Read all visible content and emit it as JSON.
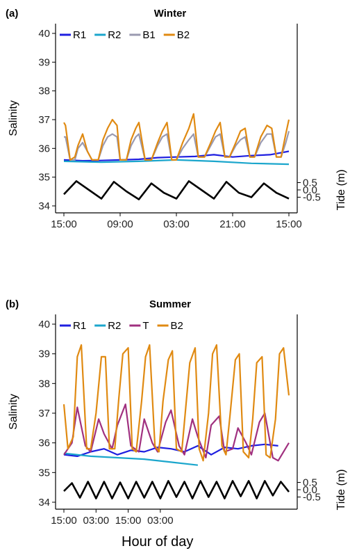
{
  "figure": {
    "xlabel": "Hour of day"
  },
  "chart_data": [
    {
      "type": "line",
      "panel_label": "(a)",
      "title": "Winter",
      "ylabel": "Salinity",
      "y2label": "Tide (m)",
      "ylim": [
        34,
        40
      ],
      "yticks": [
        "34",
        "35",
        "36",
        "37",
        "38",
        "39",
        "40"
      ],
      "y2ticks": [
        "0.5",
        "0.0",
        "-0.5"
      ],
      "xlim": [
        0,
        72
      ],
      "xticks": [
        {
          "t": 0,
          "label": "15:00"
        },
        {
          "t": 18,
          "label": "09:00"
        },
        {
          "t": 36,
          "label": "03:00"
        },
        {
          "t": 54,
          "label": "21:00"
        },
        {
          "t": 72,
          "label": "15:00"
        }
      ],
      "legend_placement": "top-left",
      "series": [
        {
          "name": "R1",
          "color": "#1f1fe0",
          "x": [
            0,
            6,
            12,
            18,
            24,
            30,
            36,
            42,
            48,
            54,
            60,
            66,
            72
          ],
          "values": [
            35.6,
            35.57,
            35.58,
            35.6,
            35.62,
            35.68,
            35.7,
            35.72,
            35.78,
            35.7,
            35.75,
            35.78,
            35.9
          ]
        },
        {
          "name": "R2",
          "color": "#1ba6cc",
          "x": [
            0,
            12,
            24,
            36,
            48,
            60,
            72
          ],
          "values": [
            35.55,
            35.52,
            35.55,
            35.6,
            35.55,
            35.48,
            35.45
          ]
        },
        {
          "name": "B1",
          "color": "#9a9ab0",
          "x": [
            0,
            0.5,
            2,
            3.5,
            4.5,
            6,
            7.5,
            9,
            11,
            12.5,
            14,
            15.5,
            17,
            18,
            20,
            21.5,
            23,
            24,
            26,
            28,
            30,
            31.5,
            33,
            34.5,
            36,
            38,
            40,
            41.5,
            43,
            45,
            47,
            48.5,
            50,
            51.5,
            53,
            55,
            56.5,
            58,
            59.5,
            61,
            63,
            65,
            66.5,
            68,
            69.5,
            71,
            72
          ],
          "values": [
            36.4,
            36.4,
            35.6,
            35.6,
            36.0,
            36.2,
            35.9,
            35.6,
            35.6,
            36.1,
            36.4,
            36.5,
            36.4,
            35.6,
            35.6,
            36.1,
            36.4,
            36.5,
            35.6,
            35.6,
            36.1,
            36.4,
            36.5,
            35.6,
            35.6,
            36.0,
            36.3,
            36.5,
            35.7,
            35.7,
            36.1,
            36.4,
            36.5,
            35.7,
            35.7,
            36.1,
            36.3,
            36.4,
            35.7,
            35.7,
            36.2,
            36.5,
            36.5,
            35.7,
            35.7,
            36.2,
            36.6
          ]
        },
        {
          "name": "B2",
          "color": "#e08a12",
          "x": [
            0,
            0.5,
            2,
            3.5,
            4.5,
            6,
            7.5,
            9,
            11,
            12.5,
            14,
            15.5,
            17,
            18,
            20,
            21.5,
            23,
            24,
            26,
            28,
            30,
            31.5,
            33,
            34.5,
            36,
            38,
            40,
            41.5,
            43,
            45,
            47,
            48.5,
            50,
            51.5,
            53,
            55,
            56.5,
            58,
            59.5,
            61,
            63,
            65,
            66.5,
            68,
            69.5,
            71,
            72
          ],
          "values": [
            36.9,
            36.8,
            35.6,
            35.7,
            36.1,
            36.5,
            35.9,
            35.6,
            35.6,
            36.3,
            36.7,
            37.0,
            36.8,
            35.6,
            35.6,
            36.3,
            36.7,
            36.9,
            35.6,
            35.6,
            36.2,
            36.6,
            36.9,
            35.6,
            35.6,
            36.2,
            36.7,
            37.2,
            35.7,
            35.7,
            36.2,
            36.6,
            36.9,
            35.7,
            35.7,
            36.2,
            36.6,
            36.7,
            35.7,
            35.7,
            36.4,
            36.8,
            36.7,
            35.7,
            35.7,
            36.5,
            37.0
          ]
        },
        {
          "name": "Tide",
          "color": "#000000",
          "axis": "tide",
          "x": [
            0,
            4,
            8,
            12,
            16,
            20,
            24,
            28,
            32,
            36,
            40,
            44,
            48,
            52,
            56,
            60,
            64,
            68,
            72
          ],
          "values": [
            -0.3,
            0.6,
            0.0,
            -0.6,
            0.55,
            -0.1,
            -0.65,
            0.45,
            -0.2,
            -0.6,
            0.6,
            0.0,
            -0.6,
            0.55,
            -0.2,
            -0.5,
            0.45,
            -0.2,
            -0.6
          ]
        }
      ]
    },
    {
      "type": "line",
      "panel_label": "(b)",
      "title": "Summer",
      "ylabel": "Salinity",
      "y2label": "Tide (m)",
      "ylim": [
        34,
        40
      ],
      "yticks": [
        "34",
        "35",
        "36",
        "37",
        "38",
        "39",
        "40"
      ],
      "y2ticks": [
        "0.5",
        "0.0",
        "-0.5"
      ],
      "xlim": [
        0,
        84
      ],
      "xticks": [
        {
          "t": 0,
          "label": "15:00"
        },
        {
          "t": 12,
          "label": "03:00"
        },
        {
          "t": 24,
          "label": "15:00"
        },
        {
          "t": 36,
          "label": "03:00"
        }
      ],
      "legend_placement": "top-left",
      "series": [
        {
          "name": "R1",
          "color": "#1f1fe0",
          "x": [
            0,
            5,
            10,
            15,
            20,
            25,
            30,
            35,
            40,
            45,
            50,
            55,
            60,
            65,
            70,
            75,
            80
          ],
          "values": [
            35.6,
            35.55,
            35.7,
            35.8,
            35.6,
            35.75,
            35.7,
            35.85,
            35.8,
            35.7,
            35.9,
            35.6,
            35.85,
            35.8,
            35.9,
            35.95,
            35.9
          ]
        },
        {
          "name": "R2",
          "color": "#1ba6cc",
          "x": [
            0,
            10,
            20,
            30,
            40,
            50
          ],
          "values": [
            35.65,
            35.55,
            35.5,
            35.45,
            35.35,
            35.25
          ]
        },
        {
          "name": "T",
          "color": "#a0307f",
          "x": [
            0,
            3,
            5,
            8,
            10,
            13,
            15,
            18,
            20,
            23,
            25,
            28,
            30,
            33,
            35,
            38,
            40,
            43,
            45,
            48,
            50,
            53,
            55,
            58,
            60,
            63,
            65,
            68,
            70,
            73,
            75,
            78,
            80,
            84
          ],
          "values": [
            35.6,
            36.0,
            37.2,
            35.9,
            35.7,
            36.8,
            36.3,
            35.8,
            36.6,
            37.3,
            35.9,
            35.7,
            36.8,
            36.0,
            35.7,
            36.7,
            37.1,
            35.9,
            35.6,
            36.8,
            36.2,
            35.5,
            36.6,
            36.9,
            35.7,
            35.8,
            36.5,
            36.0,
            35.6,
            36.7,
            37.0,
            35.5,
            35.4,
            36.0
          ]
        },
        {
          "name": "B2",
          "color": "#e08a12",
          "x": [
            0,
            1.5,
            3.5,
            5,
            6.5,
            8.5,
            10,
            12,
            14,
            15.5,
            17,
            19,
            20.5,
            22,
            24,
            25.5,
            27,
            29,
            30.5,
            32,
            34,
            35.5,
            37,
            39,
            40.5,
            42,
            44,
            45.5,
            47,
            49,
            50.5,
            52,
            54,
            55.5,
            57,
            59,
            60.5,
            62,
            64,
            65.5,
            67,
            69,
            70.5,
            72,
            74,
            75.5,
            77,
            79,
            80.5,
            82,
            84
          ],
          "values": [
            37.3,
            35.8,
            36.2,
            38.9,
            39.3,
            35.8,
            35.8,
            37.0,
            38.9,
            38.9,
            35.8,
            35.8,
            37.5,
            39.0,
            39.2,
            35.8,
            35.7,
            37.4,
            38.9,
            39.3,
            35.9,
            35.7,
            37.4,
            38.8,
            39.1,
            35.8,
            35.7,
            37.2,
            38.7,
            39.2,
            35.8,
            35.4,
            37.0,
            39.0,
            39.3,
            35.9,
            35.6,
            36.9,
            38.8,
            39.0,
            35.7,
            35.5,
            36.8,
            38.7,
            38.9,
            35.6,
            35.5,
            36.8,
            39.0,
            39.2,
            37.6
          ]
        },
        {
          "name": "Tide",
          "color": "#000000",
          "axis": "tide",
          "x": [
            0,
            3,
            6,
            9,
            12,
            15,
            18,
            21,
            24,
            27,
            30,
            33,
            36,
            39,
            42,
            45,
            48,
            51,
            54,
            57,
            60,
            63,
            66,
            69,
            72,
            75,
            78,
            81,
            84
          ],
          "values": [
            -0.1,
            0.45,
            -0.55,
            0.55,
            -0.6,
            0.55,
            -0.6,
            0.5,
            -0.6,
            0.55,
            -0.55,
            0.55,
            -0.6,
            0.6,
            -0.5,
            0.55,
            -0.6,
            0.6,
            -0.5,
            0.55,
            -0.6,
            0.6,
            -0.45,
            0.6,
            -0.6,
            0.6,
            -0.4,
            0.55,
            -0.15
          ]
        }
      ]
    }
  ]
}
